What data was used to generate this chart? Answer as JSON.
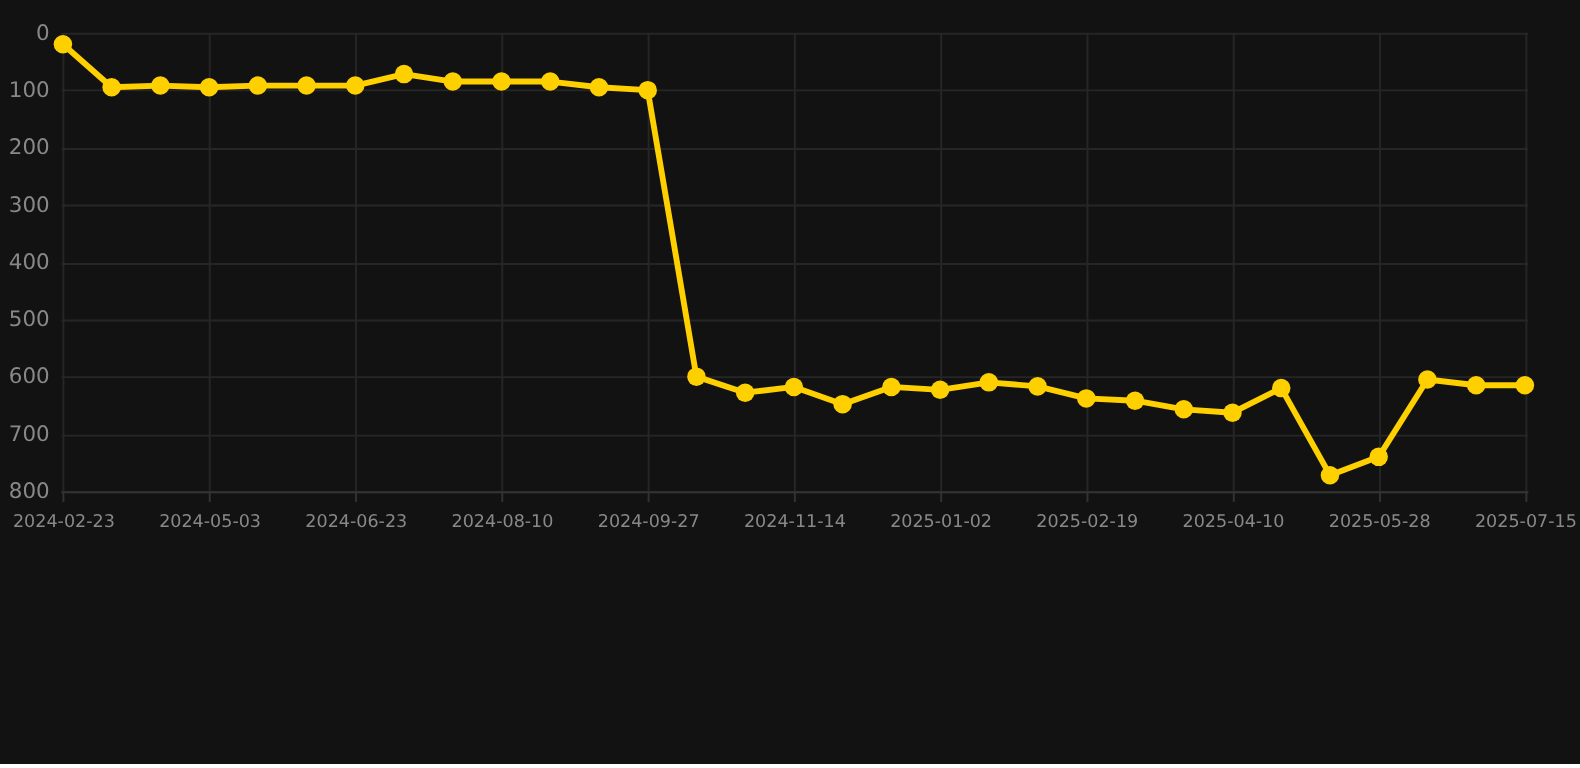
{
  "chart_data": {
    "type": "line",
    "categories": [
      "2024-02-23",
      null,
      null,
      "2024-05-03",
      null,
      null,
      "2024-06-23",
      null,
      null,
      "2024-08-10",
      null,
      null,
      "2024-09-27",
      null,
      null,
      "2024-11-14",
      null,
      null,
      "2025-01-02",
      null,
      null,
      "2025-02-19",
      null,
      null,
      "2025-04-10",
      null,
      null,
      "2025-05-28",
      null,
      null,
      "2025-07-15"
    ],
    "series": [
      {
        "color": "#ffd000",
        "values": [
          20,
          95,
          92,
          95,
          92,
          92,
          92,
          72,
          85,
          85,
          85,
          95,
          100,
          600,
          628,
          618,
          648,
          618,
          623,
          610,
          617,
          638,
          642,
          657,
          663,
          620,
          772,
          740,
          605,
          615,
          615
        ]
      }
    ],
    "ylim": [
      800,
      0
    ],
    "yticks": [
      0,
      100,
      200,
      300,
      400,
      500,
      600,
      700,
      800
    ],
    "grid": true,
    "marker": "circle",
    "legend": false
  }
}
